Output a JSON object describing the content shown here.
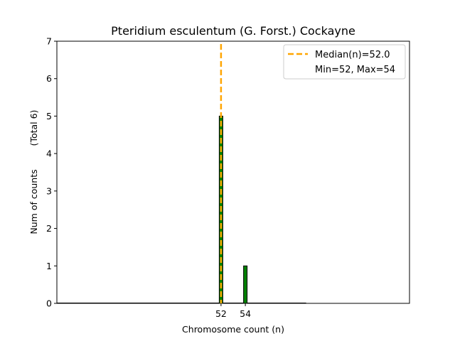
{
  "chart_data": {
    "type": "bar",
    "title": "Pteridium esculentum (G. Forst.) Cockayne",
    "xlabel": "Chromosome count (n)",
    "ylabel": "Num of counts",
    "ylabel_total": "(Total 6)",
    "xlim": [
      38.5,
      67.5
    ],
    "ylim": [
      0,
      7
    ],
    "yticks": [
      0,
      1,
      2,
      3,
      4,
      5,
      6,
      7
    ],
    "xticks": [
      52,
      54
    ],
    "bars": [
      {
        "x": 52,
        "value": 5
      },
      {
        "x": 54,
        "value": 1
      }
    ],
    "bar_color": "#008000",
    "median": {
      "value": 52.0,
      "color": "#FFA500",
      "label": "Median(n)=52.0"
    },
    "legend": {
      "placement": "top-right",
      "entries": [
        "Median(n)=52.0",
        "Min=52, Max=54"
      ]
    }
  }
}
